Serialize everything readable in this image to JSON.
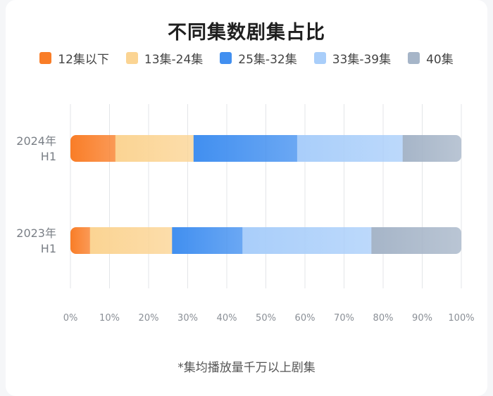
{
  "chart_data": {
    "type": "bar",
    "orientation": "horizontal",
    "stacked": true,
    "title": "不同集数剧集占比",
    "categories": [
      "2024年 H1",
      "2023年 H1"
    ],
    "category_lines": [
      [
        "2024年",
        "H1"
      ],
      [
        "2023年",
        "H1"
      ]
    ],
    "series": [
      {
        "name": "12集以下",
        "color": "#f97d27",
        "values": [
          11.5,
          5
        ]
      },
      {
        "name": "13集-24集",
        "color": "#fbd493",
        "values": [
          20,
          21
        ]
      },
      {
        "name": "25集-32集",
        "color": "#418ff0",
        "values": [
          26.5,
          18
        ]
      },
      {
        "name": "33集-39集",
        "color": "#a9cefa",
        "values": [
          27,
          33
        ]
      },
      {
        "name": "40集",
        "color": "#a6b5c8",
        "values": [
          15,
          23
        ]
      }
    ],
    "xlim": [
      0,
      100
    ],
    "xticks": [
      "0%",
      "10%",
      "20%",
      "30%",
      "40%",
      "50%",
      "60%",
      "70%",
      "80%",
      "90%",
      "100%"
    ],
    "grid": true,
    "legend_position": "top"
  },
  "note": "*集均播放量千万以上剧集"
}
